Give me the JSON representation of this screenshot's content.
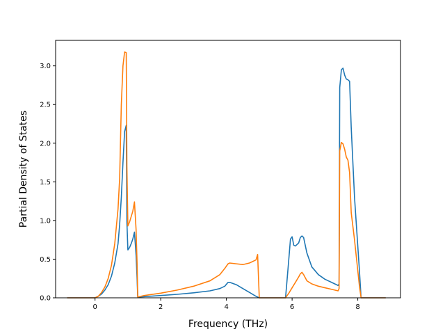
{
  "chart_data": {
    "type": "line",
    "title": "",
    "xlabel": "Frequency (THz)",
    "ylabel": "Partial Density of States",
    "xlim": [
      -1.2,
      9.3
    ],
    "ylim": [
      0.0,
      3.33
    ],
    "xticks": [
      0,
      2,
      4,
      6,
      8
    ],
    "xtick_labels": [
      "0",
      "2",
      "4",
      "6",
      "8"
    ],
    "yticks": [
      0.0,
      0.5,
      1.0,
      1.5,
      2.0,
      2.5,
      3.0
    ],
    "ytick_labels": [
      "0.0",
      "0.5",
      "1.0",
      "1.5",
      "2.0",
      "2.5",
      "3.0"
    ],
    "grid": false,
    "legend": "none",
    "series": [
      {
        "color": "#1f77b4",
        "x": [
          -0.85,
          -0.05,
          0.0,
          0.1,
          0.2,
          0.3,
          0.4,
          0.5,
          0.6,
          0.7,
          0.75,
          0.8,
          0.85,
          0.9,
          0.95,
          0.97,
          1.0,
          1.05,
          1.1,
          1.15,
          1.2,
          1.25,
          1.28,
          1.3,
          1.5,
          2.0,
          2.5,
          3.0,
          3.5,
          3.8,
          3.95,
          4.05,
          4.1,
          4.3,
          4.5,
          4.7,
          4.9,
          4.95,
          5.0,
          5.6,
          5.8,
          5.88,
          5.95,
          6.0,
          6.05,
          6.1,
          6.2,
          6.25,
          6.3,
          6.35,
          6.45,
          6.6,
          6.8,
          7.0,
          7.2,
          7.4,
          7.43,
          7.45,
          7.5,
          7.55,
          7.6,
          7.65,
          7.7,
          7.75,
          7.8,
          7.9,
          8.05,
          8.1,
          8.85
        ],
        "y": [
          0.0,
          0.0,
          0.0,
          0.02,
          0.05,
          0.1,
          0.17,
          0.28,
          0.45,
          0.7,
          0.95,
          1.3,
          1.75,
          2.15,
          2.23,
          0.98,
          0.62,
          0.65,
          0.7,
          0.76,
          0.85,
          0.55,
          0.25,
          0.01,
          0.015,
          0.03,
          0.045,
          0.065,
          0.09,
          0.12,
          0.15,
          0.2,
          0.2,
          0.17,
          0.12,
          0.07,
          0.02,
          0.01,
          0.0,
          0.0,
          0.0,
          0.4,
          0.76,
          0.79,
          0.68,
          0.67,
          0.71,
          0.78,
          0.8,
          0.78,
          0.58,
          0.4,
          0.3,
          0.24,
          0.2,
          0.16,
          0.18,
          2.72,
          2.95,
          2.97,
          2.88,
          2.83,
          2.82,
          2.8,
          2.2,
          1.3,
          0.35,
          0.0,
          0.0
        ]
      },
      {
        "color": "#ff7f0e",
        "x": [
          -0.85,
          -0.05,
          0.0,
          0.1,
          0.2,
          0.3,
          0.4,
          0.5,
          0.6,
          0.7,
          0.75,
          0.8,
          0.85,
          0.9,
          0.95,
          0.97,
          1.0,
          1.05,
          1.1,
          1.15,
          1.2,
          1.25,
          1.28,
          1.3,
          1.5,
          2.0,
          2.5,
          3.0,
          3.5,
          3.8,
          3.95,
          4.05,
          4.1,
          4.3,
          4.5,
          4.7,
          4.9,
          4.95,
          5.0,
          5.6,
          5.8,
          5.9,
          6.0,
          6.1,
          6.2,
          6.25,
          6.3,
          6.35,
          6.45,
          6.6,
          6.8,
          7.0,
          7.2,
          7.4,
          7.43,
          7.45,
          7.5,
          7.55,
          7.6,
          7.65,
          7.7,
          7.75,
          7.8,
          7.9,
          8.05,
          8.1,
          8.85
        ],
        "y": [
          0.0,
          0.0,
          0.0,
          0.02,
          0.07,
          0.14,
          0.25,
          0.42,
          0.7,
          1.15,
          1.55,
          2.5,
          3.0,
          3.18,
          3.17,
          1.7,
          0.93,
          0.98,
          1.05,
          1.12,
          1.24,
          0.88,
          0.45,
          0.01,
          0.03,
          0.06,
          0.1,
          0.15,
          0.22,
          0.3,
          0.38,
          0.44,
          0.45,
          0.44,
          0.43,
          0.45,
          0.49,
          0.56,
          0.0,
          0.0,
          0.0,
          0.06,
          0.13,
          0.2,
          0.27,
          0.31,
          0.33,
          0.3,
          0.22,
          0.18,
          0.15,
          0.13,
          0.11,
          0.09,
          0.12,
          1.9,
          2.01,
          1.99,
          1.92,
          1.82,
          1.78,
          1.62,
          1.1,
          0.75,
          0.15,
          0.0,
          0.0
        ]
      }
    ]
  }
}
